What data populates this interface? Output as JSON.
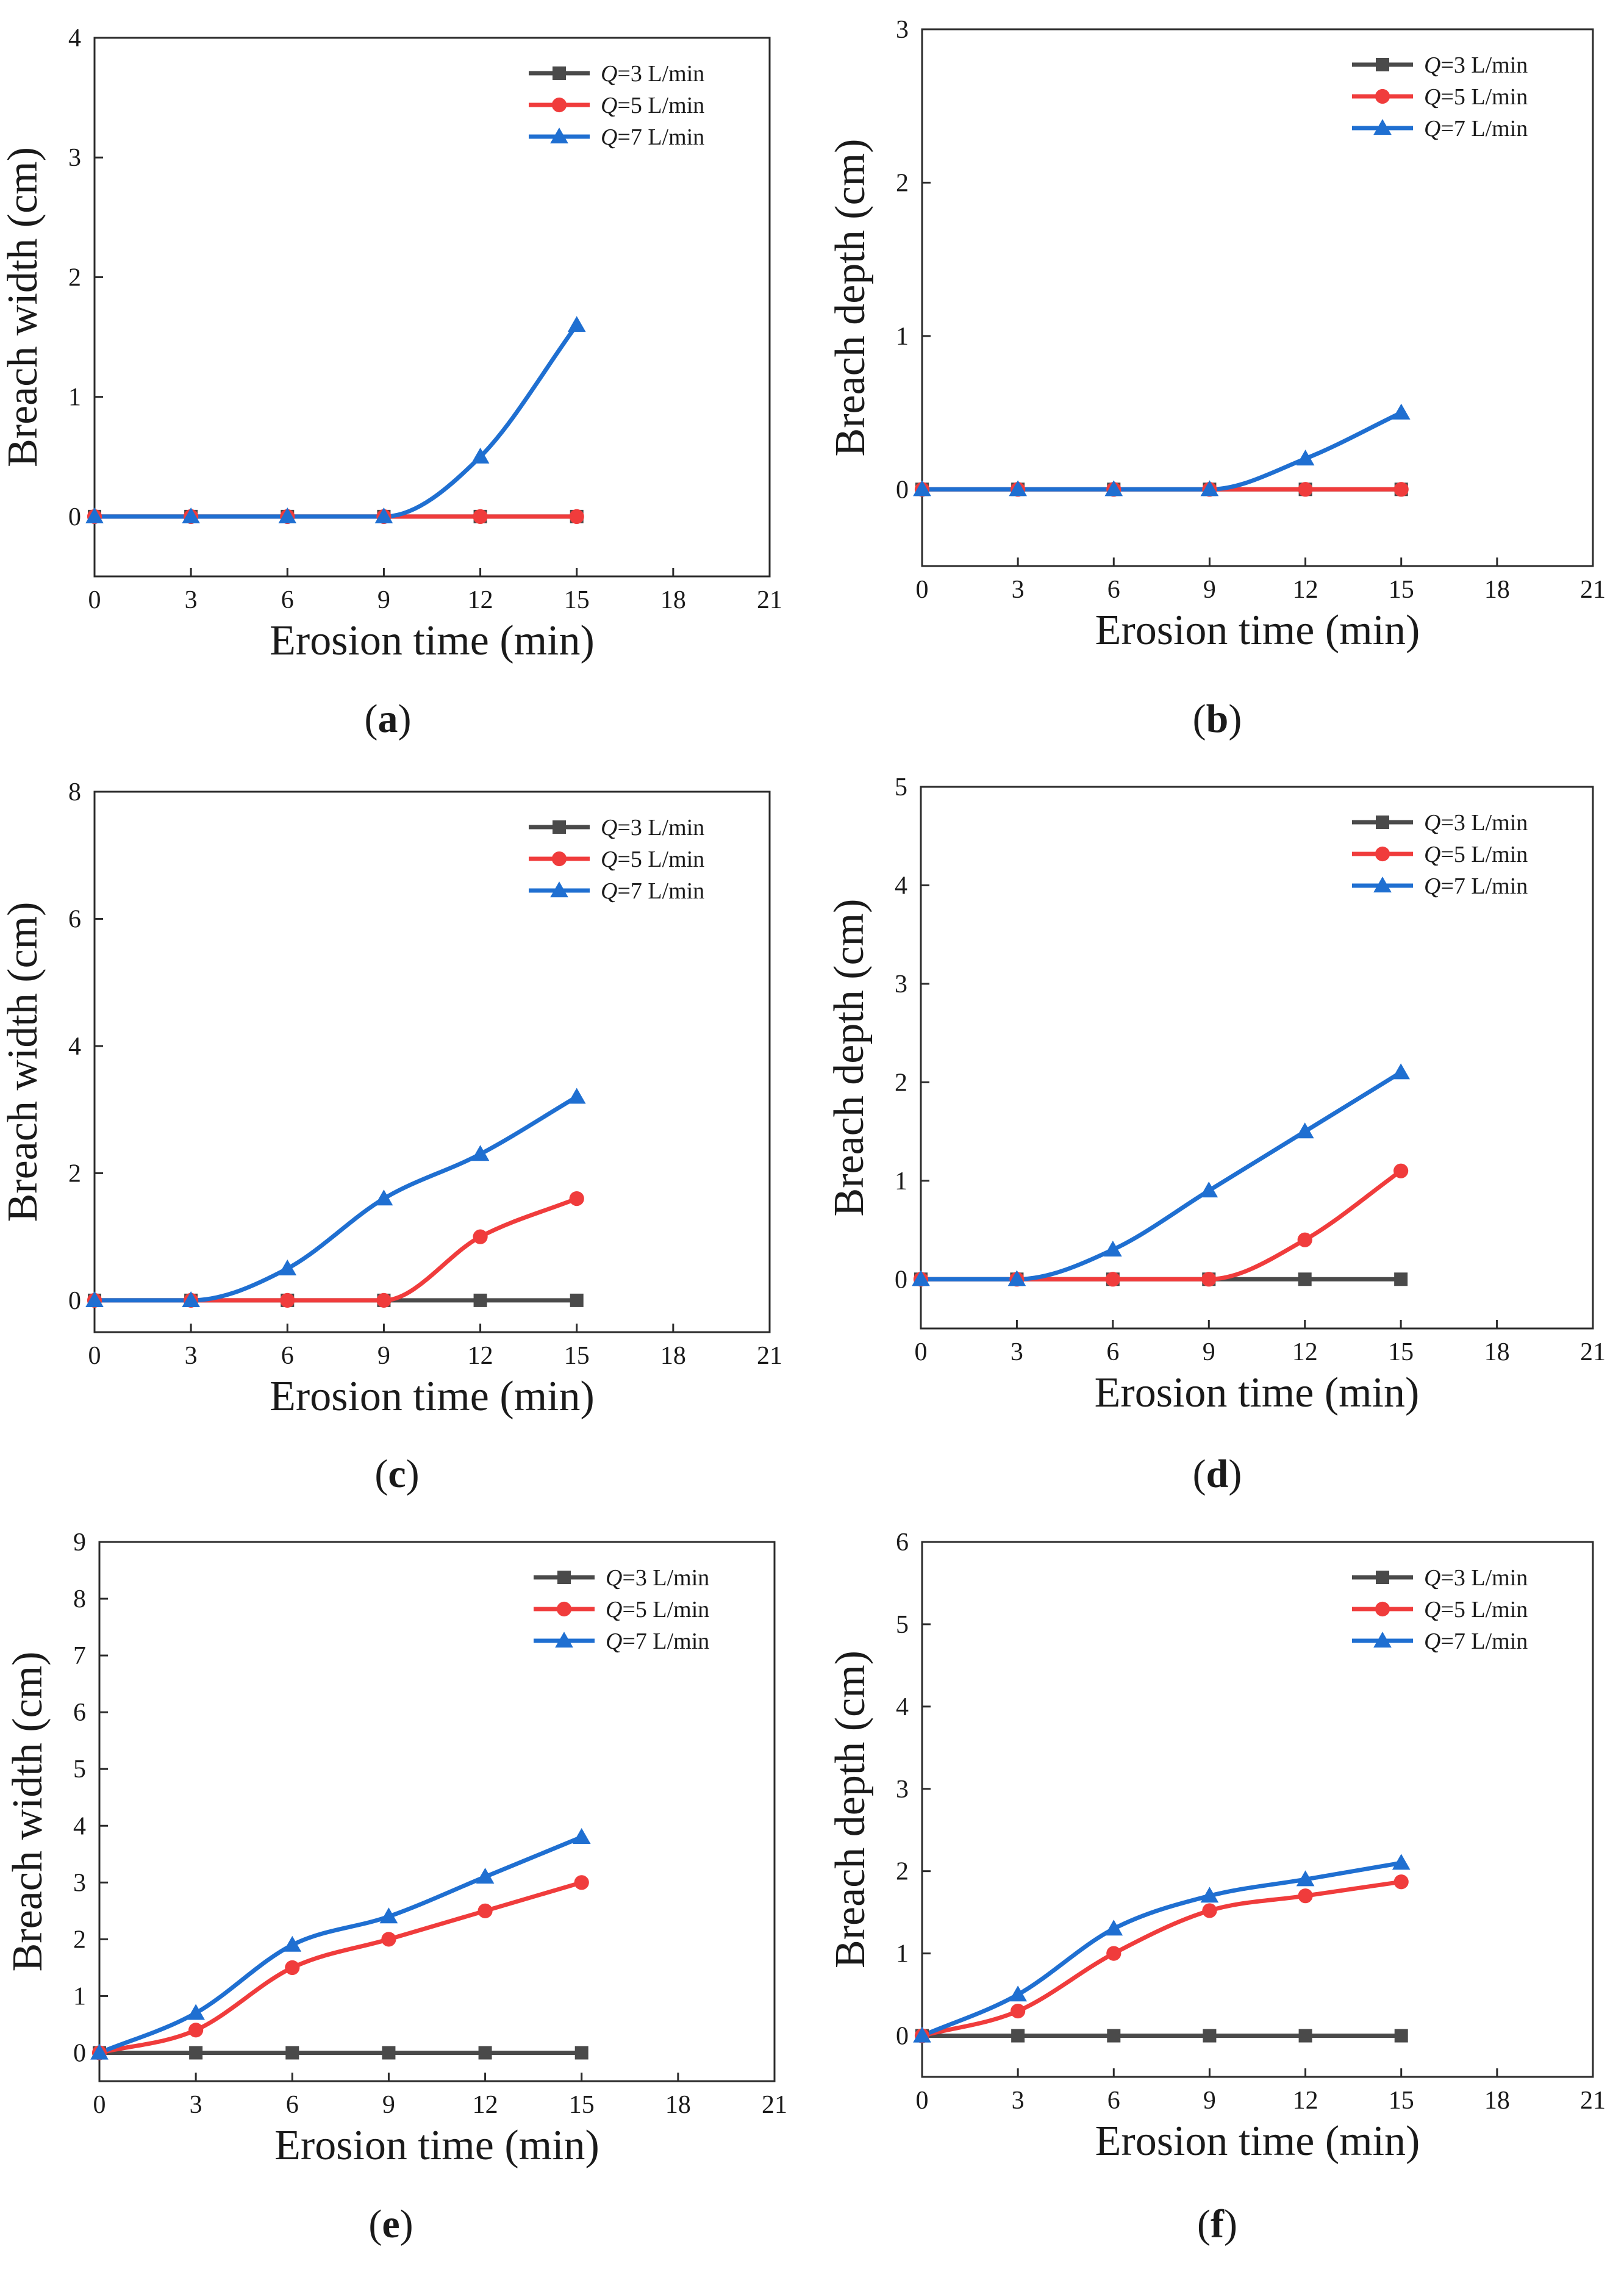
{
  "chart_data": [
    {
      "panel": "a",
      "type": "line",
      "xlabel": "Erosion time (min)",
      "ylabel": "Breach width (cm)",
      "xlim": [
        0,
        21
      ],
      "ylim": [
        -0.5,
        4
      ],
      "xticks": [
        0,
        3,
        6,
        9,
        12,
        15,
        18,
        21
      ],
      "yticks": [
        0,
        1,
        2,
        3,
        4
      ],
      "legend_position": "top-right",
      "x": [
        0,
        3,
        6,
        9,
        12,
        15
      ],
      "series": [
        {
          "name_prefix": "Q",
          "name_suffix": "=3 L/min",
          "color": "#4a4a4a",
          "marker": "square",
          "values": [
            0,
            0,
            0,
            0,
            0,
            0
          ]
        },
        {
          "name_prefix": "Q",
          "name_suffix": "=5 L/min",
          "color": "#f03c3c",
          "marker": "circle",
          "values": [
            0,
            0,
            0,
            0,
            0,
            0
          ]
        },
        {
          "name_prefix": "Q",
          "name_suffix": "=7 L/min",
          "color": "#1f6fd1",
          "marker": "triangle",
          "values": [
            0,
            0,
            0,
            0,
            0.5,
            1.6
          ]
        }
      ],
      "caption": "a"
    },
    {
      "panel": "b",
      "type": "line",
      "xlabel": "Erosion time (min)",
      "ylabel": "Breach depth (cm)",
      "xlim": [
        0,
        21
      ],
      "ylim": [
        -0.5,
        3
      ],
      "xticks": [
        0,
        3,
        6,
        9,
        12,
        15,
        18,
        21
      ],
      "yticks": [
        0,
        1,
        2,
        3
      ],
      "legend_position": "top-right",
      "x": [
        0,
        3,
        6,
        9,
        12,
        15
      ],
      "series": [
        {
          "name_prefix": "Q",
          "name_suffix": "=3 L/min",
          "color": "#4a4a4a",
          "marker": "square",
          "values": [
            0,
            0,
            0,
            0,
            0,
            0
          ]
        },
        {
          "name_prefix": "Q",
          "name_suffix": "=5 L/min",
          "color": "#f03c3c",
          "marker": "circle",
          "values": [
            0,
            0,
            0,
            0,
            0,
            0
          ]
        },
        {
          "name_prefix": "Q",
          "name_suffix": "=7 L/min",
          "color": "#1f6fd1",
          "marker": "triangle",
          "values": [
            0,
            0,
            0,
            0,
            0.2,
            0.5
          ]
        }
      ],
      "caption": "b"
    },
    {
      "panel": "c",
      "type": "line",
      "xlabel": "Erosion time (min)",
      "ylabel": "Breach width (cm)",
      "xlim": [
        0,
        21
      ],
      "ylim": [
        -0.5,
        8
      ],
      "xticks": [
        0,
        3,
        6,
        9,
        12,
        15,
        18,
        21
      ],
      "yticks": [
        0,
        2,
        4,
        6,
        8
      ],
      "legend_position": "top-right",
      "x": [
        0,
        3,
        6,
        9,
        12,
        15
      ],
      "series": [
        {
          "name_prefix": "Q",
          "name_suffix": "=3 L/min",
          "color": "#4a4a4a",
          "marker": "square",
          "values": [
            0,
            0,
            0,
            0,
            0,
            0
          ]
        },
        {
          "name_prefix": "Q",
          "name_suffix": "=5 L/min",
          "color": "#f03c3c",
          "marker": "circle",
          "values": [
            0,
            0,
            0,
            0,
            1.0,
            1.6
          ]
        },
        {
          "name_prefix": "Q",
          "name_suffix": "=7 L/min",
          "color": "#1f6fd1",
          "marker": "triangle",
          "values": [
            0,
            0,
            0.5,
            1.6,
            2.3,
            3.2
          ]
        }
      ],
      "caption": "c"
    },
    {
      "panel": "d",
      "type": "line",
      "xlabel": "Erosion time (min)",
      "ylabel": "Breach depth (cm)",
      "xlim": [
        0,
        21
      ],
      "ylim": [
        -0.5,
        5
      ],
      "xticks": [
        0,
        3,
        6,
        9,
        12,
        15,
        18,
        21
      ],
      "yticks": [
        0,
        1,
        2,
        3,
        4,
        5
      ],
      "legend_position": "top-right",
      "x": [
        0,
        3,
        6,
        9,
        12,
        15
      ],
      "series": [
        {
          "name_prefix": "Q",
          "name_suffix": "=3 L/min",
          "color": "#4a4a4a",
          "marker": "square",
          "values": [
            0,
            0,
            0,
            0,
            0,
            0
          ]
        },
        {
          "name_prefix": "Q",
          "name_suffix": "=5 L/min",
          "color": "#f03c3c",
          "marker": "circle",
          "values": [
            0,
            0,
            0,
            0,
            0.4,
            1.1
          ]
        },
        {
          "name_prefix": "Q",
          "name_suffix": "=7 L/min",
          "color": "#1f6fd1",
          "marker": "triangle",
          "values": [
            0,
            0,
            0.3,
            0.9,
            1.5,
            2.1
          ]
        }
      ],
      "caption": "d"
    },
    {
      "panel": "e",
      "type": "line",
      "xlabel": "Erosion time (min)",
      "ylabel": "Breach width (cm)",
      "xlim": [
        0,
        21
      ],
      "ylim": [
        -0.5,
        9
      ],
      "xticks": [
        0,
        3,
        6,
        9,
        12,
        15,
        18,
        21
      ],
      "yticks": [
        0,
        1,
        2,
        3,
        4,
        5,
        6,
        7,
        8,
        9
      ],
      "legend_position": "top-right",
      "x": [
        0,
        3,
        6,
        9,
        12,
        15
      ],
      "series": [
        {
          "name_prefix": "Q",
          "name_suffix": "=3 L/min",
          "color": "#4a4a4a",
          "marker": "square",
          "values": [
            0,
            0,
            0,
            0,
            0,
            0
          ]
        },
        {
          "name_prefix": "Q",
          "name_suffix": "=5 L/min",
          "color": "#f03c3c",
          "marker": "circle",
          "values": [
            0,
            0.4,
            1.5,
            2.0,
            2.5,
            3.0
          ]
        },
        {
          "name_prefix": "Q",
          "name_suffix": "=7 L/min",
          "color": "#1f6fd1",
          "marker": "triangle",
          "values": [
            0,
            0.7,
            1.9,
            2.4,
            3.1,
            3.8
          ]
        }
      ],
      "caption": "e"
    },
    {
      "panel": "f",
      "type": "line",
      "xlabel": "Erosion time (min)",
      "ylabel": "Breach depth (cm)",
      "xlim": [
        0,
        21
      ],
      "ylim": [
        -0.5,
        6
      ],
      "xticks": [
        0,
        3,
        6,
        9,
        12,
        15,
        18,
        21
      ],
      "yticks": [
        0,
        1,
        2,
        3,
        4,
        5,
        6
      ],
      "legend_position": "top-right",
      "x": [
        0,
        3,
        6,
        9,
        12,
        15
      ],
      "series": [
        {
          "name_prefix": "Q",
          "name_suffix": "=3 L/min",
          "color": "#4a4a4a",
          "marker": "square",
          "values": [
            0,
            0,
            0,
            0,
            0,
            0
          ]
        },
        {
          "name_prefix": "Q",
          "name_suffix": "=5 L/min",
          "color": "#f03c3c",
          "marker": "circle",
          "values": [
            0,
            0.3,
            1.0,
            1.52,
            1.7,
            1.87
          ]
        },
        {
          "name_prefix": "Q",
          "name_suffix": "=7 L/min",
          "color": "#1f6fd1",
          "marker": "triangle",
          "values": [
            0,
            0.5,
            1.3,
            1.7,
            1.9,
            2.1
          ]
        }
      ],
      "caption": "f"
    }
  ]
}
